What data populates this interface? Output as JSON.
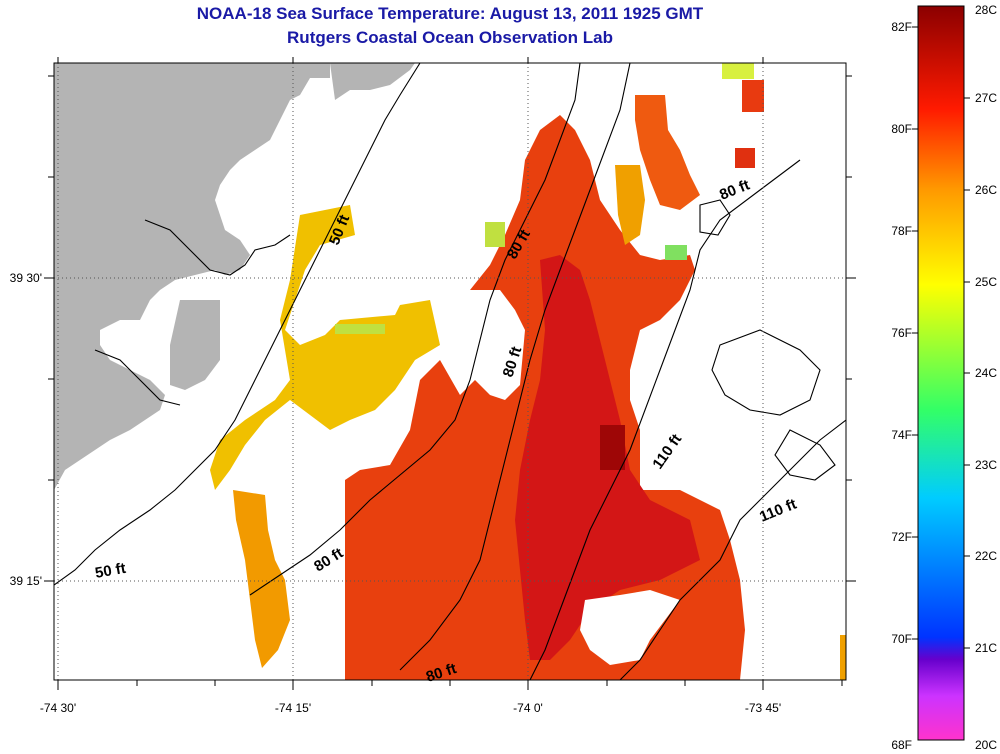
{
  "title": "NOAA-18 Sea Surface Temperature:  August 13, 2011 1925 GMT",
  "subtitle": "Rutgers Coastal Ocean Observation Lab",
  "axes": {
    "x_ticks": [
      "-74 30'",
      "-74 15'",
      "-74 0'",
      "-73 45'"
    ],
    "y_ticks": [
      "39 30'",
      "39 15'"
    ]
  },
  "contour_labels": [
    "50 ft",
    "80 ft",
    "80 ft",
    "80 ft",
    "110 ft",
    "110 ft",
    "50 ft",
    "80 ft",
    "80 ft"
  ],
  "colorbar": {
    "fahrenheit_labels": [
      "82F",
      "80F",
      "78F",
      "76F",
      "74F",
      "72F",
      "70F",
      "68F"
    ],
    "celsius_labels": [
      "28C",
      "27C",
      "26C",
      "25C",
      "24C",
      "23C",
      "22C",
      "21C",
      "20C"
    ],
    "stops": [
      "#ff33cc",
      "#6600cc",
      "#0033ff",
      "#00ccff",
      "#33ff66",
      "#ffff00",
      "#ff9900",
      "#ff0000",
      "#8b0000"
    ]
  },
  "colors": {
    "land": "#b4b4b4",
    "sst_warm": "#e83a10",
    "sst_hot": "#d81818",
    "sst_cool": "#f0d000",
    "title": "#1a1aa6"
  }
}
